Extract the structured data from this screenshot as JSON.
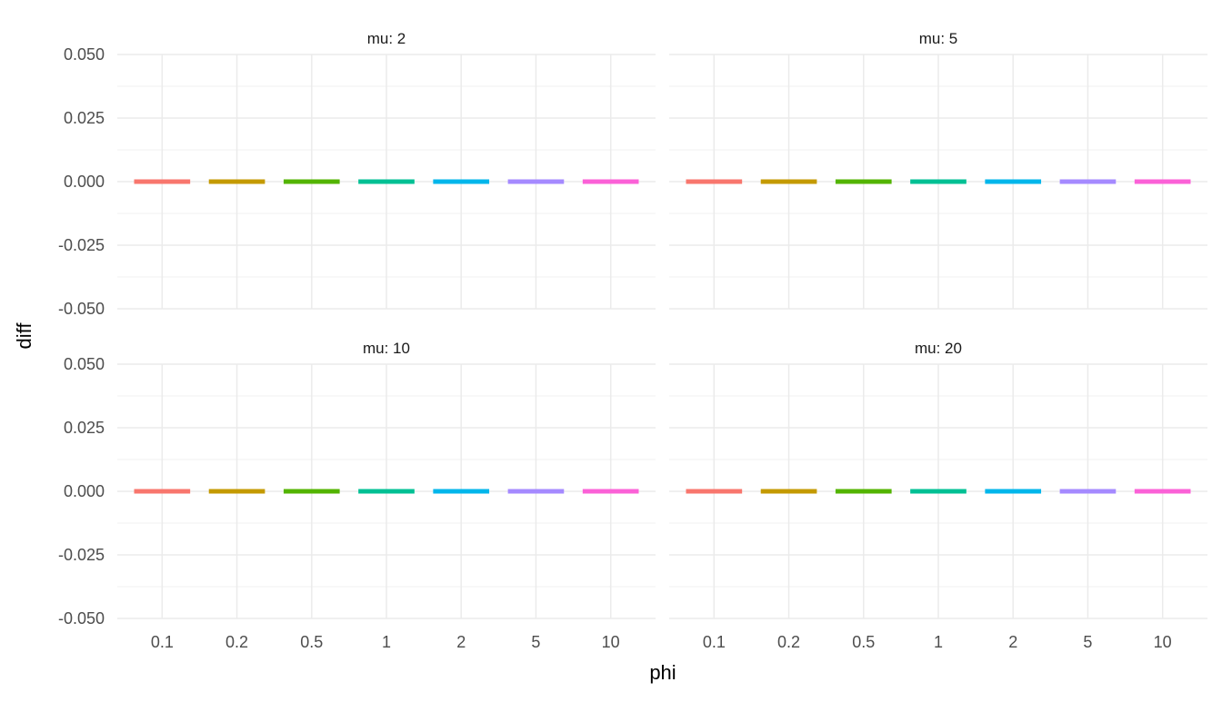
{
  "chart_data": {
    "type": "boxplot",
    "xlabel": "phi",
    "ylabel": "diff",
    "ylim": [
      -0.05,
      0.05
    ],
    "yticks": [
      "0.050",
      "0.025",
      "0.000",
      "-0.025",
      "-0.050"
    ],
    "ytick_values": [
      0.05,
      0.025,
      0,
      -0.025,
      -0.05
    ],
    "categories": [
      "0.1",
      "0.2",
      "0.5",
      "1",
      "2",
      "5",
      "10"
    ],
    "colors": [
      "#F8766D",
      "#C49A00",
      "#53B400",
      "#00C094",
      "#00B6EB",
      "#A58AFF",
      "#FB61D7"
    ],
    "grid": true,
    "legend": "none",
    "facets": [
      {
        "label": "mu: 2",
        "values": [
          0,
          0,
          0,
          0,
          0,
          0,
          0
        ]
      },
      {
        "label": "mu: 5",
        "values": [
          0,
          0,
          0,
          0,
          0,
          0,
          0
        ]
      },
      {
        "label": "mu: 10",
        "values": [
          0,
          0,
          0,
          0,
          0,
          0,
          0
        ]
      },
      {
        "label": "mu: 20",
        "values": [
          0,
          0,
          0,
          0,
          0,
          0,
          0
        ]
      }
    ]
  }
}
